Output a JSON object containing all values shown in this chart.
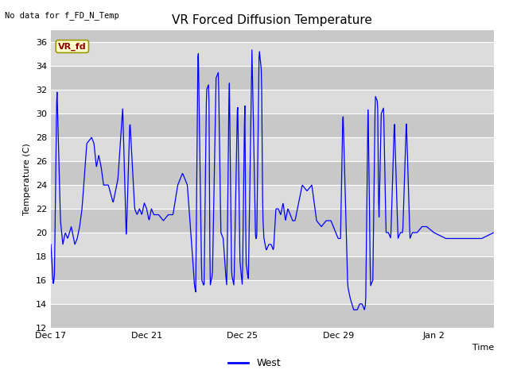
{
  "title": "VR Forced Diffusion Temperature",
  "xlabel": "Time",
  "ylabel": "Temperature (C)",
  "top_left_text": "No data for f_FD_N_Temp",
  "legend_label": "West",
  "line_color": "#0000FF",
  "background_color": "#DCDCDC",
  "stripe_color": "#C8C8C8",
  "figure_bg": "#FFFFFF",
  "ylim": [
    12,
    37
  ],
  "yticks": [
    12,
    14,
    16,
    18,
    20,
    22,
    24,
    26,
    28,
    30,
    32,
    34,
    36
  ],
  "xtick_labels": [
    "Dec 17",
    "Dec 21",
    "Dec 25",
    "Dec 29",
    "Jan 2"
  ],
  "annotation_box_text": "VR_fd",
  "annotation_box_color": "#FFFFCC",
  "annotation_box_edge_color": "#999900"
}
